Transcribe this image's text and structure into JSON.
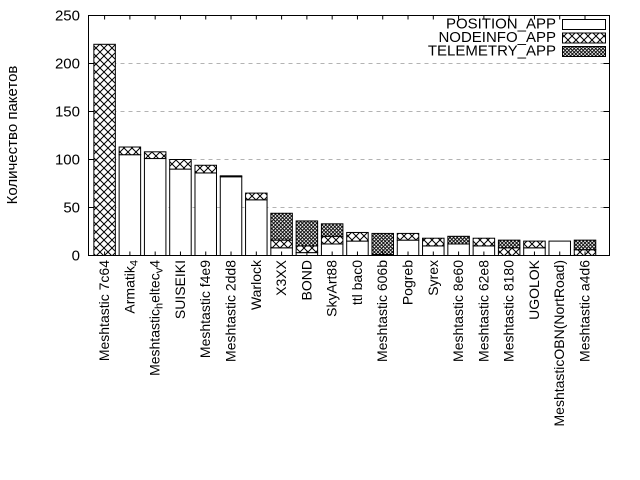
{
  "chart_data": {
    "type": "bar",
    "stacked": true,
    "title": "",
    "xlabel": "",
    "ylabel": "Количество пакетов",
    "ylim": [
      0,
      250
    ],
    "yticks": [
      0,
      50,
      100,
      150,
      200,
      250
    ],
    "grid": "horizontal-dashed",
    "legend_position": "top-right-inside",
    "categories": [
      "Meshtastic 7c64",
      "Armatik_4",
      "Meshtastic_heltec_v4",
      "SUISEIKI",
      "Meshtastic f4e9",
      "Meshtastic 2dd8",
      "Warlock",
      "X3XX",
      "BOND",
      "SkyArt88",
      "ttl bac0",
      "Meshtastic 606b",
      "Pogreb",
      "Syrex",
      "Meshtastic 8e60",
      "Meshtastic 62e8",
      "Meshtastic 8180",
      "UGOLOK",
      "MeshtasticOBN(NortRoad)",
      "Meshtastic a4d6"
    ],
    "series": [
      {
        "name": "POSITION_APP",
        "fill": "empty",
        "values": [
          0,
          105,
          101,
          90,
          86,
          82,
          58,
          8,
          3,
          12,
          15,
          1,
          16,
          10,
          12,
          10,
          0,
          8,
          15,
          0
        ]
      },
      {
        "name": "NODEINFO_APP",
        "fill": "crosshatch",
        "values": [
          220,
          8,
          7,
          10,
          8,
          1,
          7,
          8,
          7,
          8,
          9,
          0,
          7,
          8,
          0,
          8,
          8,
          7,
          0,
          6
        ]
      },
      {
        "name": "TELEMETRY_APP",
        "fill": "dense-crosshatch",
        "values": [
          0,
          0,
          0,
          0,
          0,
          0,
          0,
          28,
          26,
          13,
          0,
          22,
          0,
          0,
          8,
          0,
          8,
          0,
          0,
          10
        ]
      }
    ],
    "totals": [
      220,
      113,
      108,
      100,
      94,
      83,
      65,
      44,
      36,
      33,
      24,
      23,
      23,
      18,
      20,
      18,
      16,
      15,
      15,
      16
    ],
    "colors": {
      "background": "#ffffff",
      "stroke": "#000000",
      "grid": "#b3b3b3",
      "bar_fill": "#ffffff"
    }
  }
}
